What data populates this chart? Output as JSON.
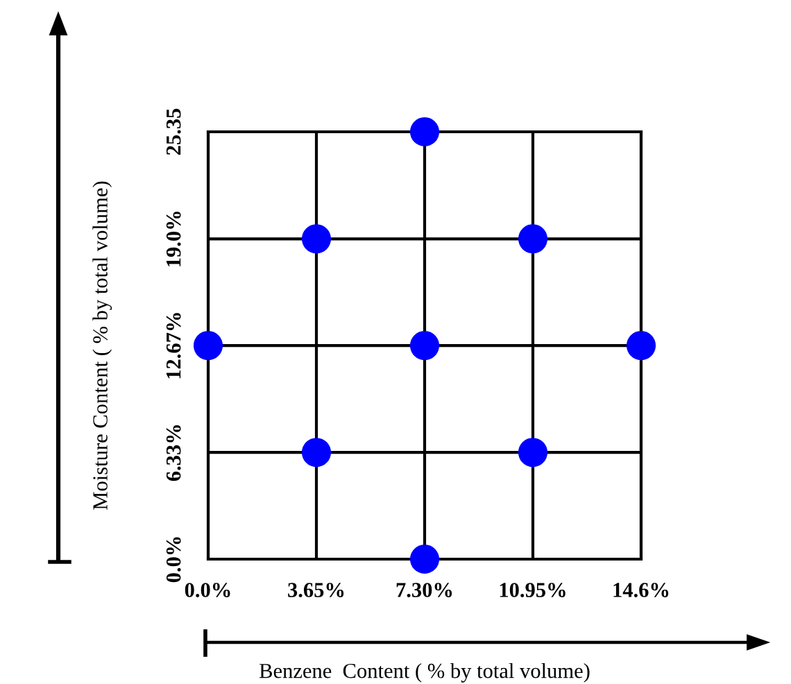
{
  "chart_data": {
    "type": "scatter",
    "xlabel": "Benzene  Content ( % by total volume)",
    "ylabel": "Moisture Content ( % by total volume)",
    "x": [
      7.3,
      3.65,
      10.95,
      0,
      7.3,
      14.6,
      3.65,
      10.95,
      7.3
    ],
    "series": [
      {
        "color": "#0000ff",
        "values": [
          25.35,
          19.0,
          19.0,
          12.67,
          12.67,
          12.67,
          6.33,
          6.33,
          0
        ]
      }
    ],
    "xlim": [
      0,
      14.6
    ],
    "ylim": [
      0,
      25.35
    ],
    "xticks": [
      {
        "value": 0,
        "label": "0.0%"
      },
      {
        "value": 3.65,
        "label": "3.65%"
      },
      {
        "value": 7.3,
        "label": "7.30%"
      },
      {
        "value": 10.95,
        "label": "10.95%"
      },
      {
        "value": 14.6,
        "label": "14.6%"
      }
    ],
    "yticks": [
      {
        "value": 0,
        "label": "0.0%"
      },
      {
        "value": 6.33,
        "label": "6.33%"
      },
      {
        "value": 12.67,
        "label": "12.67%"
      },
      {
        "value": 19.0,
        "label": "19.0%"
      },
      25.35
    ],
    "grid": true,
    "marker": "circle",
    "legend": false
  }
}
